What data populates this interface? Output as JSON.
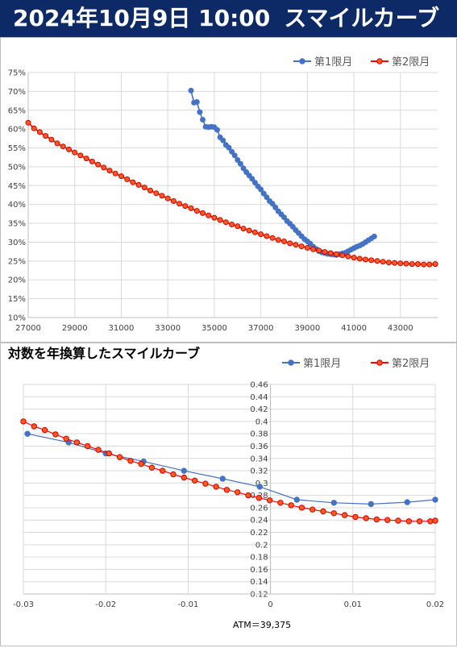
{
  "header": {
    "datetime": "2024年10月9日 10:00",
    "title": "スマイルカーブ"
  },
  "chart_data": [
    {
      "type": "line",
      "title": "",
      "xlabel": "",
      "ylabel": "",
      "xlim": [
        27000,
        44600
      ],
      "ylim": [
        0.1,
        0.75
      ],
      "x_ticks": [
        27000,
        29000,
        31000,
        33000,
        35000,
        37000,
        39000,
        41000,
        43000
      ],
      "x_tick_labels": [
        "27000",
        "29000",
        "31000",
        "33000",
        "35000",
        "37000",
        "39000",
        "41000",
        "43000"
      ],
      "y_ticks": [
        0.1,
        0.15,
        0.2,
        0.25,
        0.3,
        0.35,
        0.4,
        0.45,
        0.5,
        0.55,
        0.6,
        0.65,
        0.7,
        0.75
      ],
      "y_tick_labels": [
        "10%",
        "15%",
        "20%",
        "25%",
        "30%",
        "35%",
        "40%",
        "45%",
        "50%",
        "55%",
        "60%",
        "65%",
        "70%",
        "75%"
      ],
      "grid": true,
      "legend_position": "top-right",
      "series": [
        {
          "name": "第1限月",
          "color": "#4472c4",
          "x": [
            34000,
            34125,
            34250,
            34375,
            34500,
            34625,
            34750,
            34875,
            35000,
            35125,
            35250,
            35375,
            35500,
            35625,
            35750,
            35875,
            36000,
            36125,
            36250,
            36375,
            36500,
            36625,
            36750,
            36875,
            37000,
            37125,
            37250,
            37375,
            37500,
            37625,
            37750,
            37875,
            38000,
            38125,
            38250,
            38375,
            38500,
            38625,
            38750,
            38875,
            39000,
            39125,
            39250,
            39375,
            39500,
            39625,
            39750,
            39875,
            40000,
            40125,
            40250,
            40375,
            40500,
            40625,
            40750,
            40875,
            41000,
            41125,
            41250,
            41375,
            41500,
            41625,
            41750,
            41875
          ],
          "y": [
            0.702,
            0.67,
            0.672,
            0.645,
            0.625,
            0.606,
            0.605,
            0.606,
            0.605,
            0.598,
            0.578,
            0.57,
            0.558,
            0.551,
            0.54,
            0.53,
            0.518,
            0.508,
            0.496,
            0.486,
            0.477,
            0.468,
            0.458,
            0.448,
            0.44,
            0.429,
            0.419,
            0.409,
            0.402,
            0.392,
            0.382,
            0.374,
            0.366,
            0.356,
            0.349,
            0.341,
            0.332,
            0.324,
            0.316,
            0.308,
            0.302,
            0.296,
            0.288,
            0.282,
            0.276,
            0.273,
            0.271,
            0.269,
            0.268,
            0.267,
            0.266,
            0.268,
            0.27,
            0.272,
            0.276,
            0.28,
            0.284,
            0.288,
            0.291,
            0.295,
            0.3,
            0.305,
            0.31,
            0.315
          ]
        },
        {
          "name": "第2限月",
          "color": "#ff0000",
          "x": [
            27000,
            27250,
            27500,
            27750,
            28000,
            28250,
            28500,
            28750,
            29000,
            29250,
            29500,
            29750,
            30000,
            30250,
            30500,
            30750,
            31000,
            31250,
            31500,
            31750,
            32000,
            32250,
            32500,
            32750,
            33000,
            33250,
            33500,
            33750,
            34000,
            34250,
            34500,
            34750,
            35000,
            35250,
            35500,
            35750,
            36000,
            36250,
            36500,
            36750,
            37000,
            37250,
            37500,
            37750,
            38000,
            38250,
            38500,
            38750,
            39000,
            39250,
            39500,
            39750,
            40000,
            40250,
            40500,
            40750,
            41000,
            41250,
            41500,
            41750,
            42000,
            42250,
            42500,
            42750,
            43000,
            43250,
            43500,
            43750,
            44000,
            44250,
            44500
          ],
          "y": [
            0.617,
            0.602,
            0.592,
            0.582,
            0.572,
            0.562,
            0.554,
            0.546,
            0.538,
            0.53,
            0.522,
            0.514,
            0.506,
            0.498,
            0.49,
            0.482,
            0.475,
            0.467,
            0.459,
            0.452,
            0.445,
            0.437,
            0.43,
            0.423,
            0.416,
            0.409,
            0.402,
            0.396,
            0.39,
            0.383,
            0.377,
            0.371,
            0.365,
            0.359,
            0.353,
            0.347,
            0.342,
            0.336,
            0.331,
            0.326,
            0.321,
            0.316,
            0.311,
            0.306,
            0.302,
            0.297,
            0.293,
            0.289,
            0.285,
            0.281,
            0.278,
            0.274,
            0.271,
            0.268,
            0.265,
            0.262,
            0.259,
            0.256,
            0.254,
            0.252,
            0.25,
            0.248,
            0.246,
            0.245,
            0.244,
            0.243,
            0.242,
            0.242,
            0.241,
            0.241,
            0.242
          ]
        }
      ]
    },
    {
      "type": "line",
      "title": "対数を年換算したスマイルカーブ",
      "xlabel": "ATM＝39,375",
      "ylabel": "",
      "xlim": [
        -0.03,
        0.02
      ],
      "ylim": [
        0.12,
        0.46
      ],
      "x_ticks": [
        -0.03,
        -0.02,
        -0.01,
        0,
        0.01,
        0.02
      ],
      "x_tick_labels": [
        "-0.03",
        "-0.02",
        "-0.01",
        "0",
        "0.01",
        "0.02"
      ],
      "y_ticks": [
        0.12,
        0.14,
        0.16,
        0.18,
        0.2,
        0.22,
        0.24,
        0.26,
        0.28,
        0.3,
        0.32,
        0.34,
        0.36,
        0.38,
        0.4,
        0.42,
        0.44,
        0.46
      ],
      "y_tick_labels": [
        "0.12",
        "0.14",
        "0.16",
        "0.18",
        "0.2",
        "0.22",
        "0.24",
        "0.26",
        "0.28",
        "0.3",
        "0.32",
        "0.34",
        "0.36",
        "0.38",
        "0.4",
        "0.42",
        "0.44",
        "0.46"
      ],
      "grid": true,
      "legend_position": "top-right",
      "series": [
        {
          "name": "第1限月",
          "color": "#4472c4",
          "x": [
            -0.0295,
            -0.0245,
            -0.02,
            -0.0154,
            -0.0105,
            -0.0058,
            -0.0013,
            0.0032,
            0.0077,
            0.0122,
            0.0166,
            0.02
          ],
          "y": [
            0.38,
            0.366,
            0.348,
            0.335,
            0.32,
            0.307,
            0.294,
            0.273,
            0.268,
            0.266,
            0.269,
            0.273
          ]
        },
        {
          "name": "第2限月",
          "color": "#ff0000",
          "x": [
            -0.03,
            -0.0287,
            -0.0274,
            -0.0261,
            -0.0248,
            -0.0235,
            -0.0222,
            -0.0209,
            -0.0196,
            -0.0183,
            -0.017,
            -0.0157,
            -0.0144,
            -0.0131,
            -0.0118,
            -0.0105,
            -0.0092,
            -0.0079,
            -0.0066,
            -0.0053,
            -0.004,
            -0.0027,
            -0.0014,
            -0.0001,
            0.0012,
            0.0025,
            0.0038,
            0.0051,
            0.0064,
            0.0077,
            0.009,
            0.0103,
            0.0116,
            0.0129,
            0.0142,
            0.0155,
            0.0168,
            0.0181,
            0.0194,
            0.02
          ],
          "y": [
            0.4,
            0.392,
            0.386,
            0.379,
            0.372,
            0.366,
            0.36,
            0.354,
            0.348,
            0.342,
            0.336,
            0.331,
            0.325,
            0.32,
            0.314,
            0.309,
            0.304,
            0.299,
            0.294,
            0.289,
            0.285,
            0.28,
            0.276,
            0.272,
            0.268,
            0.264,
            0.26,
            0.257,
            0.254,
            0.251,
            0.248,
            0.245,
            0.243,
            0.241,
            0.24,
            0.239,
            0.238,
            0.238,
            0.238,
            0.239
          ]
        }
      ]
    }
  ]
}
